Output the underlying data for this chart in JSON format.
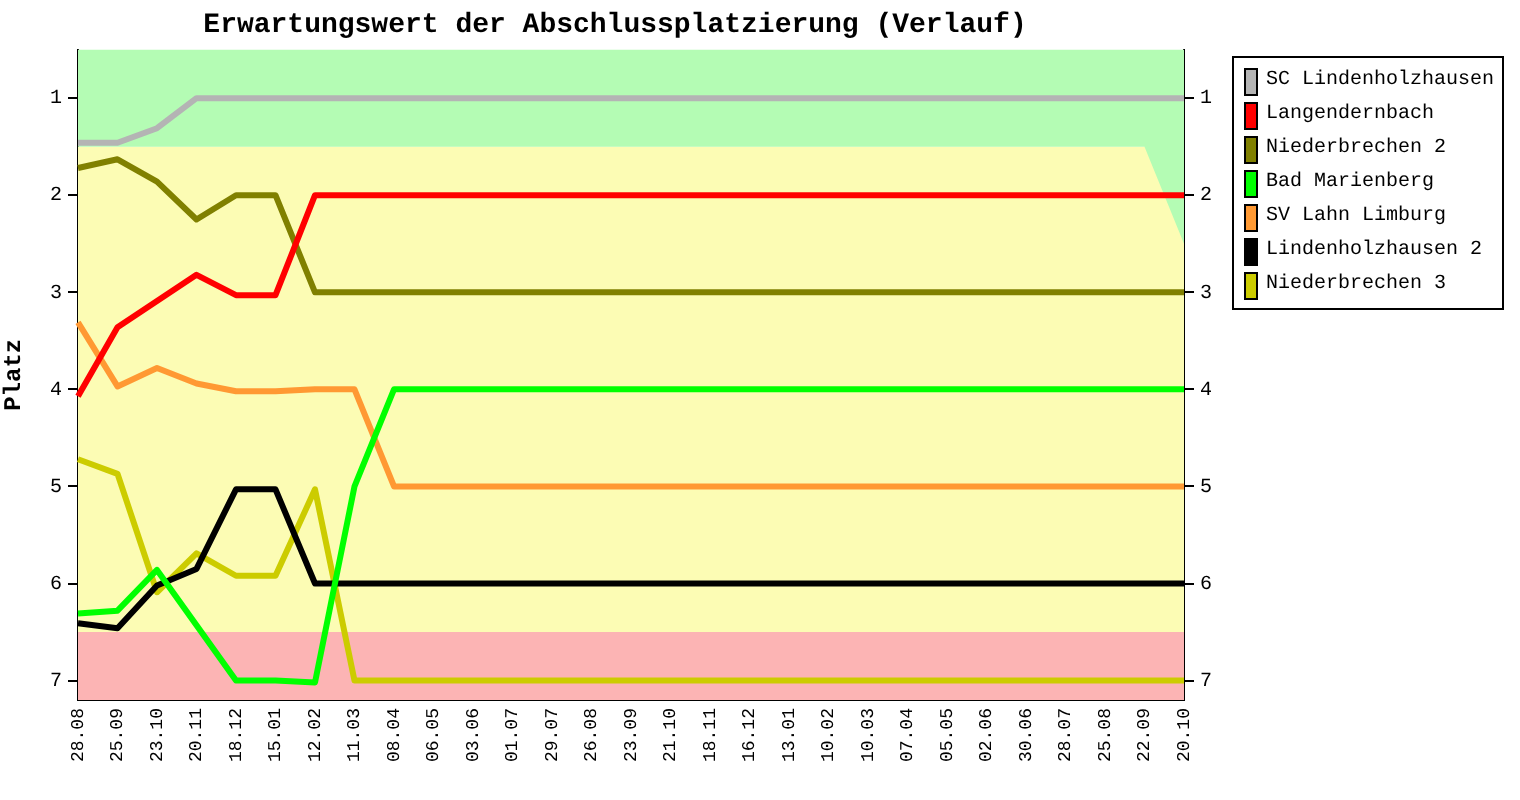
{
  "chart_data": {
    "type": "line",
    "title": "Erwartungswert der Abschlussplatzierung (Verlauf)",
    "ylabel": "Platz",
    "categories": [
      "28.08",
      "25.09",
      "23.10",
      "20.11",
      "18.12",
      "15.01",
      "12.02",
      "11.03",
      "08.04",
      "06.05",
      "03.06",
      "01.07",
      "29.07",
      "26.08",
      "23.09",
      "21.10",
      "18.11",
      "16.12",
      "13.01",
      "10.02",
      "10.03",
      "07.04",
      "05.05",
      "02.06",
      "30.06",
      "28.07",
      "25.08",
      "22.09",
      "20.10"
    ],
    "ylim": [
      7.2,
      0.5
    ],
    "yticks": [
      1,
      2,
      3,
      4,
      5,
      6,
      7
    ],
    "y2lim": [
      7.2,
      0.5
    ],
    "y2ticks": [
      1,
      2,
      3,
      4,
      5,
      6,
      7
    ],
    "grid": false,
    "legend": "right",
    "marker": "none",
    "bands": [
      {
        "axis": "y",
        "from": 1.5,
        "to": 6.5,
        "color": "#fcfcb4"
      },
      {
        "axis": "y",
        "from": 6.5,
        "to": 7.2,
        "color": "#fcb4b4"
      }
    ],
    "series": [
      {
        "type": "area",
        "color": "#b4fcb4",
        "values": [
          1.5,
          1.5,
          1.5,
          1.5,
          1.5,
          1.5,
          1.5,
          1.5,
          1.5,
          1.5,
          1.5,
          1.5,
          1.5,
          1.5,
          1.5,
          1.5,
          1.5,
          1.5,
          1.5,
          1.5,
          1.5,
          1.5,
          1.5,
          1.5,
          1.5,
          1.5,
          1.5,
          1.5,
          2.5
        ]
      },
      {
        "name": "SC Lindenholzhausen",
        "color": "#b4b4b4",
        "values": [
          1.46,
          1.46,
          1.31,
          1,
          1,
          1,
          1,
          1,
          1,
          1,
          1,
          1,
          1,
          1,
          1,
          1,
          1,
          1,
          1,
          1,
          1,
          1,
          1,
          1,
          1,
          1,
          1,
          1,
          1
        ]
      },
      {
        "name": "Langendernbach",
        "color": "#ff0000",
        "values": [
          4.07,
          3.36,
          3.09,
          2.82,
          3.03,
          3.03,
          2,
          2,
          2,
          2,
          2,
          2,
          2,
          2,
          2,
          2,
          2,
          2,
          2,
          2,
          2,
          2,
          2,
          2,
          2,
          2,
          2,
          2,
          2
        ]
      },
      {
        "name": "Niederbrechen 2",
        "color": "#808000",
        "values": [
          1.72,
          1.63,
          1.86,
          2.25,
          2,
          2,
          3,
          3,
          3,
          3,
          3,
          3,
          3,
          3,
          3,
          3,
          3,
          3,
          3,
          3,
          3,
          3,
          3,
          3,
          3,
          3,
          3,
          3,
          3
        ]
      },
      {
        "name": "Bad Marienberg",
        "color": "#00ff00",
        "values": [
          6.31,
          6.28,
          5.86,
          6.43,
          7,
          7,
          7.02,
          5,
          4,
          4,
          4,
          4,
          4,
          4,
          4,
          4,
          4,
          4,
          4,
          4,
          4,
          4,
          4,
          4,
          4,
          4,
          4,
          4,
          4
        ]
      },
      {
        "name": "SV Lahn Limburg",
        "color": "#ff9933",
        "values": [
          3.31,
          3.97,
          3.78,
          3.94,
          4.02,
          4.02,
          4,
          4,
          5,
          5,
          5,
          5,
          5,
          5,
          5,
          5,
          5,
          5,
          5,
          5,
          5,
          5,
          5,
          5,
          5,
          5,
          5,
          5,
          5
        ]
      },
      {
        "name": "Lindenholzhausen 2",
        "color": "#000000",
        "values": [
          6.41,
          6.46,
          6.02,
          5.85,
          5.03,
          5.03,
          6,
          6,
          6,
          6,
          6,
          6,
          6,
          6,
          6,
          6,
          6,
          6,
          6,
          6,
          6,
          6,
          6,
          6,
          6,
          6,
          6,
          6,
          6
        ]
      },
      {
        "name": "Niederbrechen 3",
        "color": "#cccc00",
        "values": [
          4.72,
          4.87,
          6.09,
          5.69,
          5.92,
          5.92,
          5.03,
          7,
          7,
          7,
          7,
          7,
          7,
          7,
          7,
          7,
          7,
          7,
          7,
          7,
          7,
          7,
          7,
          7,
          7,
          7,
          7,
          7,
          7
        ]
      }
    ]
  }
}
